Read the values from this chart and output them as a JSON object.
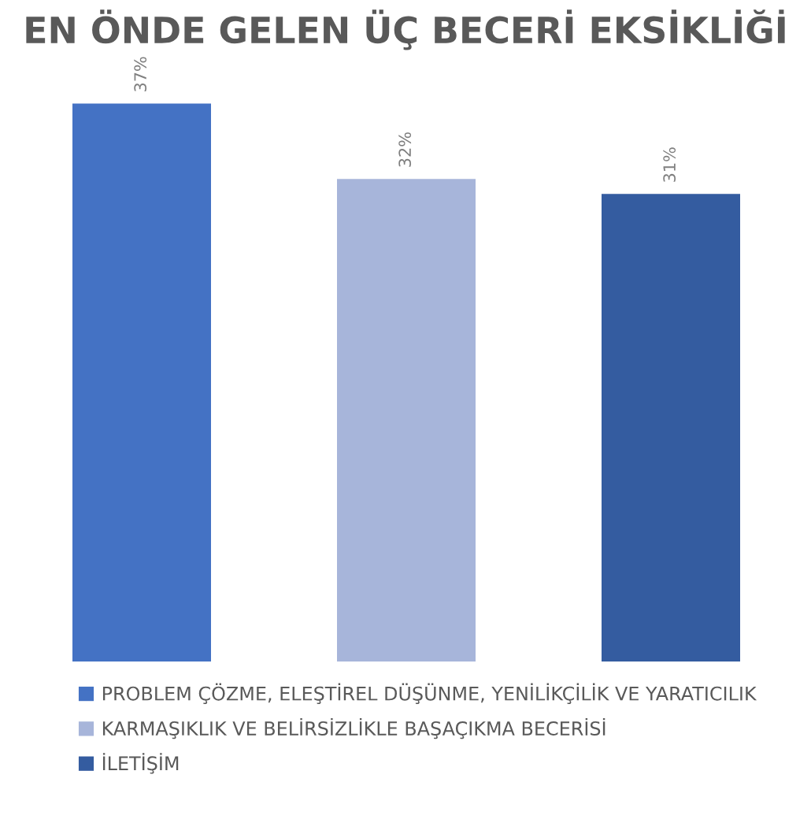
{
  "chart_data": {
    "type": "bar",
    "title": "EN ÖNDE GELEN ÜÇ BECERİ EKSİKLİĞİ",
    "categories": [
      null,
      null,
      null
    ],
    "stacked": true,
    "series": [
      {
        "name": "PROBLEM ÇÖZME, ELEŞTİREL DÜŞÜNME, YENİLİKÇİLİK VE YARATICILIK",
        "color": "#4472c4",
        "values": [
          37,
          null,
          null
        ],
        "value_labels": [
          "37%",
          null,
          null
        ]
      },
      {
        "name": "KARMAŞIKLIK VE BELİRSİZLİKLE BAŞAÇIKMA BECERİSİ",
        "color": "#a7b5da",
        "values": [
          null,
          32,
          null
        ],
        "value_labels": [
          null,
          "32%",
          null
        ]
      },
      {
        "name": "İLETİŞİM",
        "color": "#345ca0",
        "values": [
          null,
          null,
          31
        ],
        "value_labels": [
          null,
          null,
          "31%"
        ]
      }
    ],
    "legend": "bottom"
  }
}
